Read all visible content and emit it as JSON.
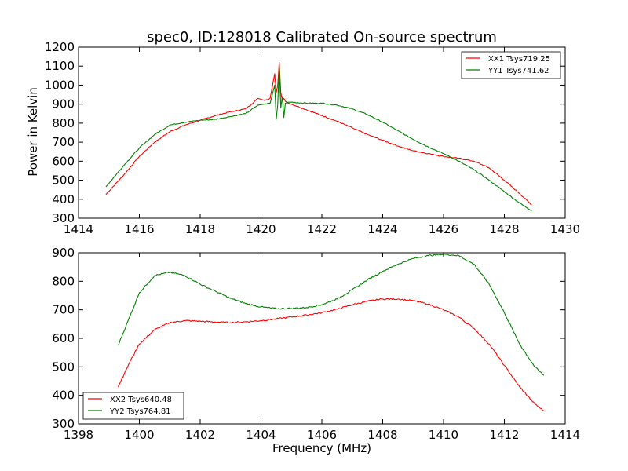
{
  "chart_data": [
    {
      "type": "line",
      "title": "spec0, ID:128018 Calibrated On-source spectrum",
      "xlabel": "",
      "ylabel": "Power in Kelvin",
      "xlim": [
        1414,
        1430
      ],
      "ylim": [
        300,
        1200
      ],
      "xticks": [
        1414,
        1416,
        1418,
        1420,
        1422,
        1424,
        1426,
        1428,
        1430
      ],
      "yticks": [
        300,
        400,
        500,
        600,
        700,
        800,
        900,
        1000,
        1100,
        1200
      ],
      "legend_position": "upper-right",
      "grid": false,
      "series": [
        {
          "name": "XX1 Tsys719.25",
          "color": "#ff0000",
          "x": [
            1414.9,
            1415.5,
            1416,
            1416.5,
            1417,
            1417.5,
            1418,
            1418.5,
            1419,
            1419.5,
            1419.9,
            1420.1,
            1420.3,
            1420.45,
            1420.5,
            1420.55,
            1420.6,
            1420.65,
            1420.7,
            1420.75,
            1420.8,
            1420.9,
            1421,
            1421.5,
            1422,
            1422.5,
            1423,
            1423.5,
            1424,
            1424.5,
            1425,
            1425.5,
            1426,
            1426.5,
            1427,
            1427.5,
            1428,
            1428.5,
            1428.9
          ],
          "values": [
            425,
            530,
            625,
            700,
            755,
            790,
            815,
            840,
            860,
            875,
            930,
            920,
            930,
            1060,
            960,
            1000,
            1120,
            960,
            920,
            930,
            915,
            905,
            900,
            870,
            840,
            810,
            775,
            740,
            710,
            680,
            655,
            640,
            625,
            615,
            600,
            565,
            500,
            430,
            370
          ]
        },
        {
          "name": "YY1 Tsys741.62",
          "color": "#008000",
          "x": [
            1414.9,
            1415.5,
            1416,
            1416.5,
            1417,
            1417.5,
            1418,
            1418.5,
            1419,
            1419.5,
            1419.9,
            1420.1,
            1420.3,
            1420.45,
            1420.5,
            1420.55,
            1420.6,
            1420.65,
            1420.7,
            1420.75,
            1420.8,
            1420.9,
            1421,
            1421.5,
            1422,
            1422.5,
            1423,
            1423.5,
            1424,
            1424.5,
            1425,
            1425.5,
            1426,
            1426.5,
            1427,
            1427.5,
            1428,
            1428.5,
            1428.9
          ],
          "values": [
            465,
            580,
            670,
            740,
            790,
            805,
            815,
            820,
            835,
            850,
            895,
            900,
            905,
            1000,
            820,
            900,
            1100,
            880,
            940,
            830,
            905,
            910,
            910,
            905,
            905,
            895,
            875,
            845,
            805,
            760,
            715,
            675,
            640,
            600,
            555,
            500,
            440,
            380,
            340
          ]
        }
      ]
    },
    {
      "type": "line",
      "title": "",
      "xlabel": "Frequency (MHz)",
      "ylabel": "",
      "xlim": [
        1398,
        1414
      ],
      "ylim": [
        300,
        900
      ],
      "xticks": [
        1398,
        1400,
        1402,
        1404,
        1406,
        1408,
        1410,
        1412,
        1414
      ],
      "yticks": [
        300,
        400,
        500,
        600,
        700,
        800,
        900
      ],
      "legend_position": "lower-left",
      "grid": false,
      "series": [
        {
          "name": "XX2 Tsys640.48",
          "color": "#ff0000",
          "x": [
            1399.3,
            1399.7,
            1400,
            1400.5,
            1401,
            1401.5,
            1402,
            1402.5,
            1403,
            1403.5,
            1404,
            1404.5,
            1405,
            1405.5,
            1406,
            1406.5,
            1407,
            1407.5,
            1408,
            1408.5,
            1409,
            1409.5,
            1410,
            1410.5,
            1411,
            1411.5,
            1412,
            1412.5,
            1413,
            1413.3
          ],
          "values": [
            430,
            520,
            580,
            630,
            655,
            662,
            660,
            657,
            655,
            658,
            662,
            668,
            675,
            682,
            690,
            702,
            718,
            730,
            738,
            738,
            732,
            720,
            700,
            675,
            635,
            580,
            505,
            430,
            370,
            345
          ]
        },
        {
          "name": "YY2 Tsys764.81",
          "color": "#008000",
          "x": [
            1399.3,
            1399.7,
            1400,
            1400.5,
            1401,
            1401.5,
            1402,
            1402.5,
            1403,
            1403.5,
            1404,
            1404.5,
            1405,
            1405.5,
            1406,
            1406.5,
            1407,
            1407.5,
            1408,
            1408.5,
            1409,
            1409.5,
            1410,
            1410.5,
            1411,
            1411.5,
            1412,
            1412.5,
            1413,
            1413.3
          ],
          "values": [
            575,
            680,
            760,
            820,
            832,
            820,
            790,
            765,
            740,
            722,
            710,
            704,
            705,
            708,
            718,
            738,
            770,
            805,
            835,
            860,
            880,
            890,
            895,
            890,
            860,
            790,
            690,
            580,
            500,
            470
          ]
        }
      ]
    }
  ]
}
